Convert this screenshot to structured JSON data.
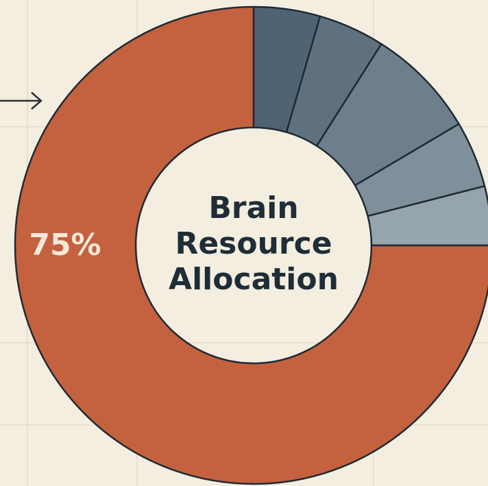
{
  "chart_data": {
    "type": "donut",
    "title": "Brain Resource Allocation",
    "values": [
      4.5,
      4.5,
      7.5,
      4.5,
      4,
      75
    ],
    "value_labels": [
      null,
      null,
      null,
      null,
      null,
      "75%"
    ],
    "colors": [
      "#506372",
      "#5f717f",
      "#6d7f8c",
      "#7f909b",
      "#96a4ac",
      "#c4613f"
    ]
  }
}
